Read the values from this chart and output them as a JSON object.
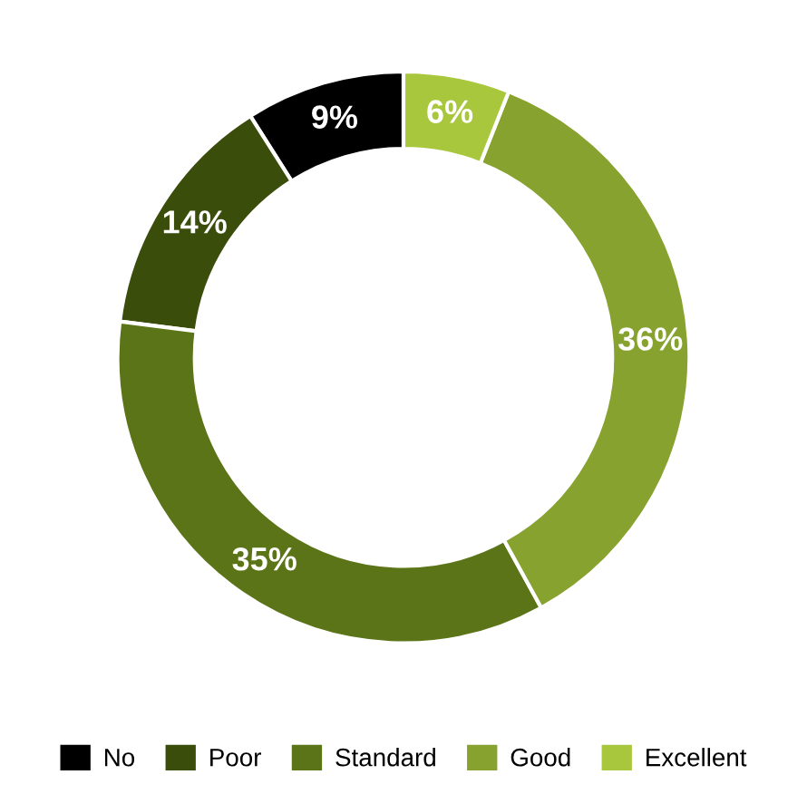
{
  "chart_data": {
    "type": "donut",
    "categories": [
      "No",
      "Poor",
      "Standard",
      "Good",
      "Excellent"
    ],
    "values": [
      9,
      14,
      35,
      36,
      6
    ],
    "colors": [
      "#000000",
      "#3b4d0b",
      "#5c7418",
      "#87a22f",
      "#a9c73d"
    ],
    "value_labels": [
      "9%",
      "14%",
      "35%",
      "36%",
      "6%"
    ],
    "legend": "bottom"
  }
}
